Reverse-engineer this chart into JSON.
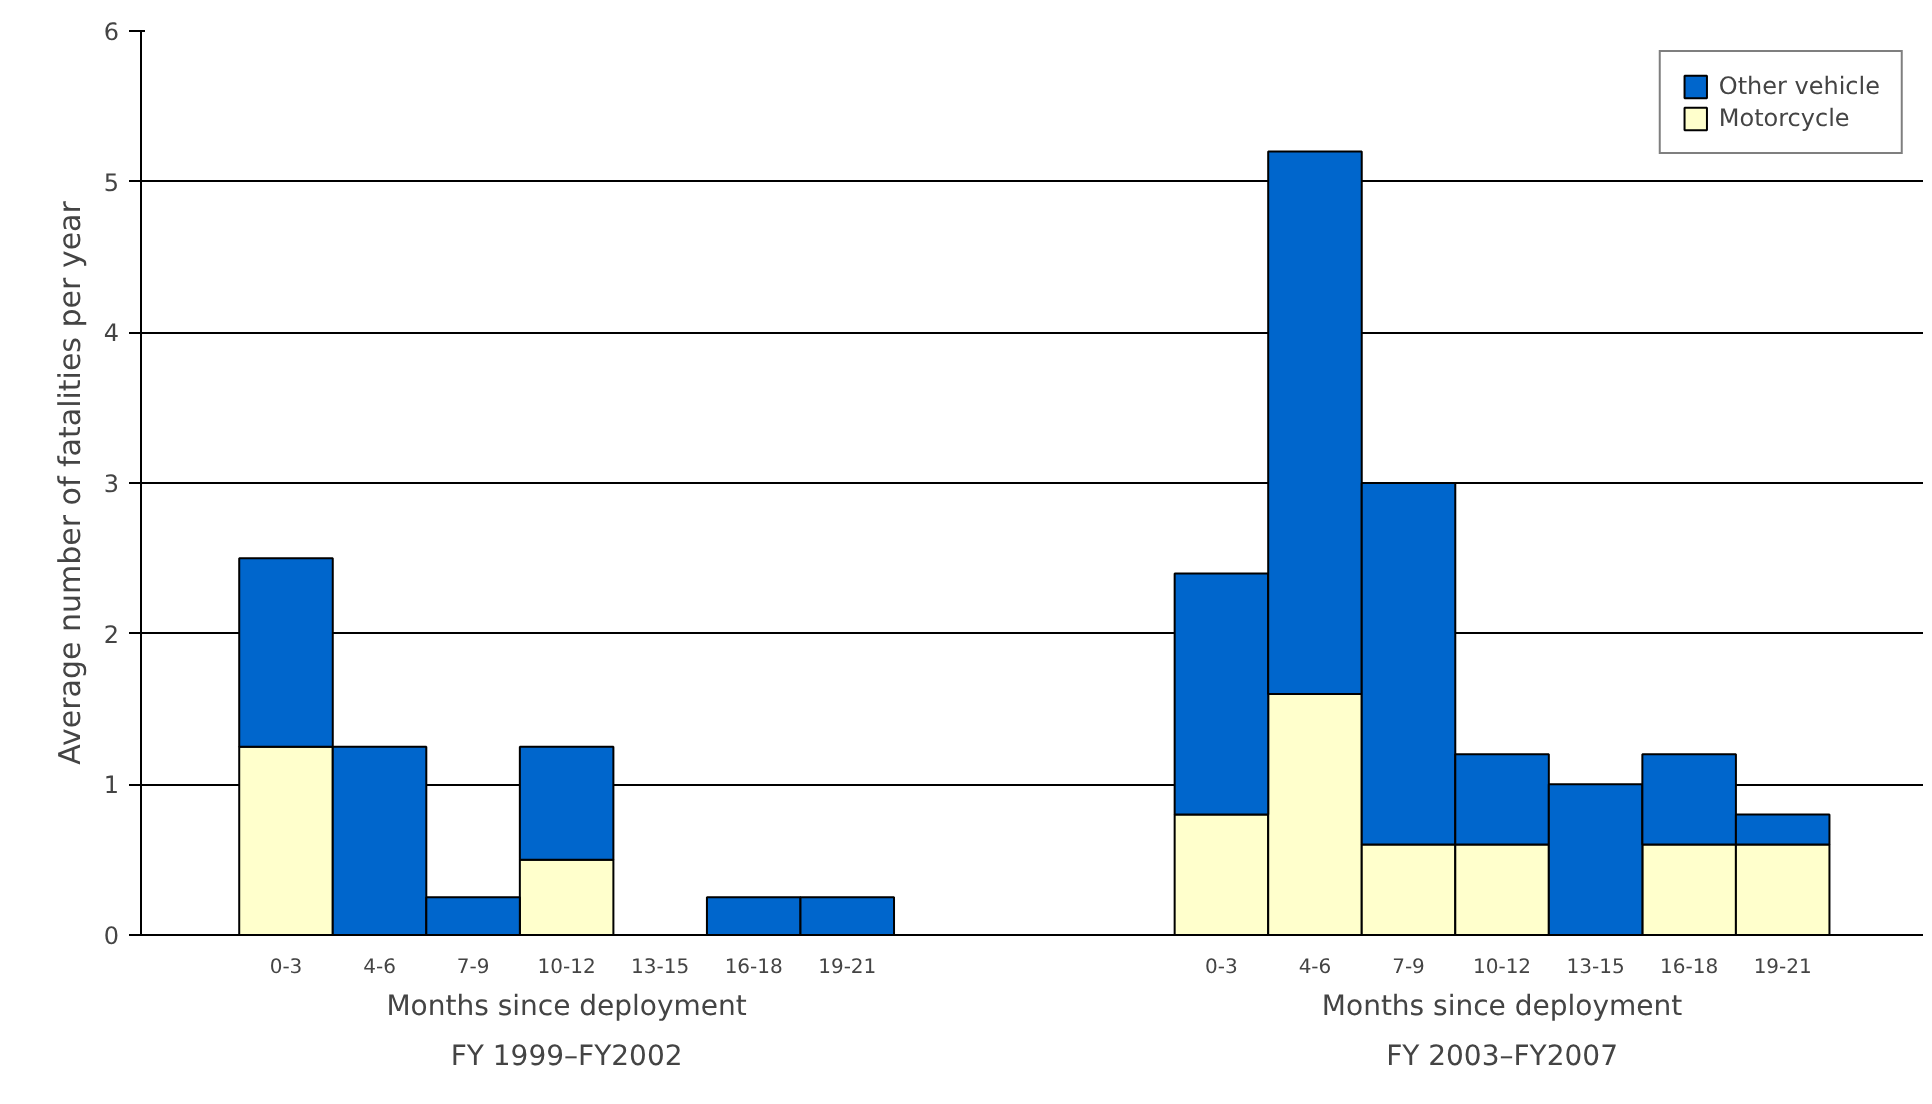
{
  "chart_data": {
    "type": "bar",
    "stacked": true,
    "ylabel": "Average number of fatalities per year",
    "categories": [
      "0-3",
      "4-6",
      "7-9",
      "10-12",
      "13-15",
      "16-18",
      "19-21",
      null,
      null,
      null,
      "0-3",
      "4-6",
      "7-9",
      "10-12",
      "13-15",
      "16-18",
      "19-21"
    ],
    "series": [
      {
        "name": "Motorcycle",
        "color": "#ffffcc",
        "values": [
          1.25,
          0,
          0,
          0.5,
          0,
          0,
          0,
          null,
          null,
          null,
          0.8,
          1.6,
          0.6,
          0.6,
          0,
          0.6,
          0.6
        ]
      },
      {
        "name": "Other vehicle",
        "color": "#0066cc",
        "values": [
          1.25,
          1.25,
          0.25,
          0.75,
          0,
          0.25,
          0.25,
          null,
          null,
          null,
          1.6,
          3.6,
          2.4,
          0.6,
          1.0,
          0.6,
          0.2
        ]
      }
    ],
    "ylim": [
      0,
      6
    ],
    "yticks": [
      0,
      1,
      2,
      3,
      4,
      5,
      6
    ],
    "grid": "y",
    "legend": "top right",
    "annotations": [
      "Months since deployment",
      "FY 1999–FY2002",
      "Months since deployment",
      "FY 2003–FY2007"
    ]
  }
}
